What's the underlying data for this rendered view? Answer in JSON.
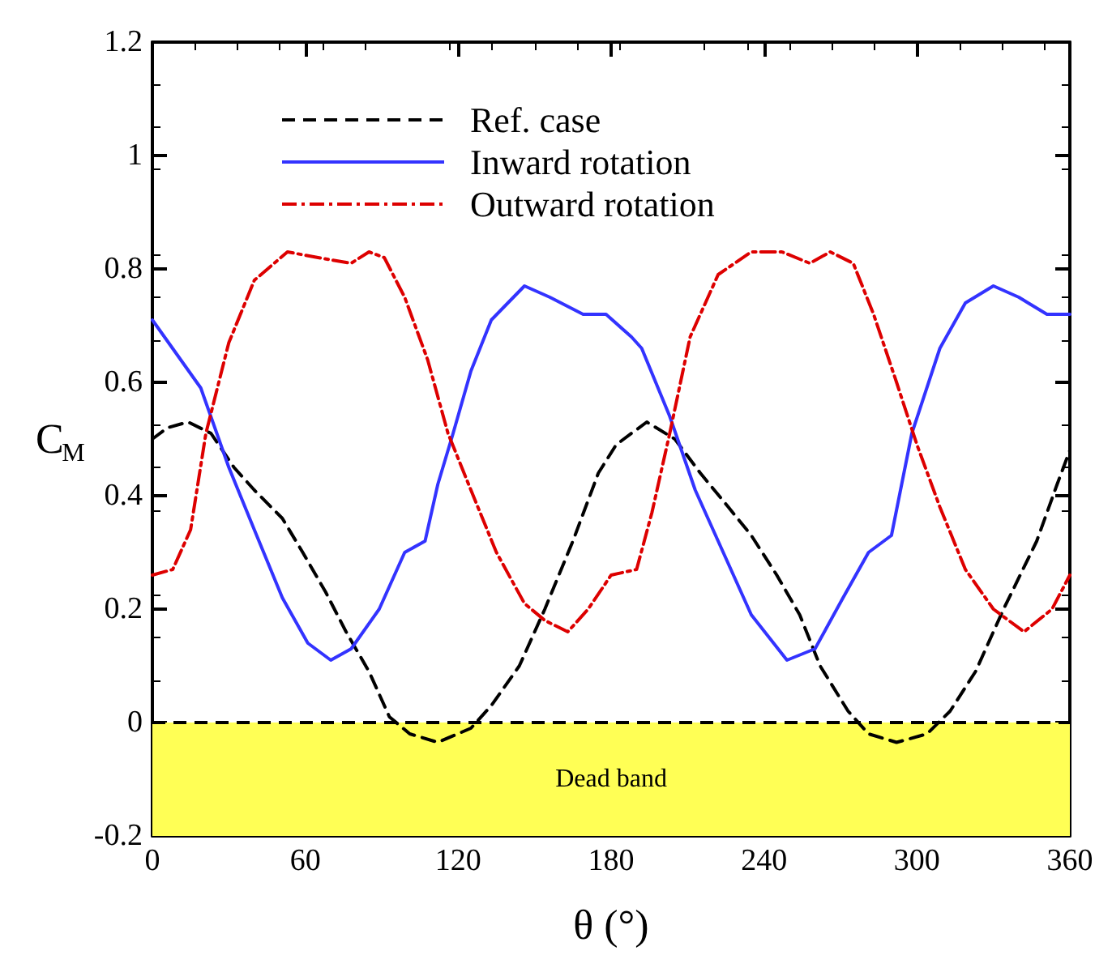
{
  "chart_data": {
    "type": "line",
    "xlabel": "θ (°)",
    "ylabel": "C$_{M}$",
    "xlim": [
      0,
      360
    ],
    "xticks": [
      0,
      60,
      120,
      180,
      240,
      300,
      360
    ],
    "ylim": [
      -0.2,
      1.2
    ],
    "yticks": [
      -0.2,
      0,
      0.2,
      0.4,
      0.6,
      0.8,
      1,
      1.2
    ],
    "grid": false,
    "legend": "top left",
    "marker": "none",
    "series": [
      {
        "name": "Ref. case",
        "color": "#000000",
        "line_style": "dashed",
        "x": [
          0,
          6,
          14,
          23,
          32,
          40,
          51,
          59,
          68,
          76,
          85,
          93,
          101,
          112,
          125,
          133,
          144,
          154,
          165,
          175,
          182,
          194,
          205,
          215,
          226,
          235,
          245,
          254,
          262,
          273,
          281,
          292,
          304,
          313,
          323,
          334,
          347,
          355,
          360
        ],
        "values": [
          0.5,
          0.52,
          0.53,
          0.51,
          0.45,
          0.41,
          0.36,
          0.3,
          0.23,
          0.16,
          0.09,
          0.01,
          -0.02,
          -0.035,
          -0.01,
          0.03,
          0.1,
          0.2,
          0.32,
          0.44,
          0.49,
          0.53,
          0.5,
          0.44,
          0.38,
          0.33,
          0.26,
          0.19,
          0.1,
          0.02,
          -0.02,
          -0.035,
          -0.02,
          0.02,
          0.09,
          0.2,
          0.32,
          0.42,
          0.48
        ]
      },
      {
        "name": "Inward rotation",
        "color": "#3333ff",
        "line_style": "solid",
        "x": [
          0,
          19,
          30,
          40,
          51,
          61,
          70,
          78,
          89,
          99,
          107,
          112,
          118,
          125,
          133,
          146,
          156,
          169,
          178,
          188,
          192,
          203,
          213,
          224,
          235,
          249,
          260,
          271,
          281,
          290,
          298,
          309,
          319,
          330,
          340,
          351,
          360
        ],
        "values": [
          0.71,
          0.59,
          0.45,
          0.34,
          0.22,
          0.14,
          0.11,
          0.13,
          0.2,
          0.3,
          0.32,
          0.42,
          0.51,
          0.62,
          0.71,
          0.77,
          0.75,
          0.72,
          0.72,
          0.68,
          0.66,
          0.54,
          0.41,
          0.3,
          0.19,
          0.11,
          0.13,
          0.22,
          0.3,
          0.33,
          0.51,
          0.66,
          0.74,
          0.77,
          0.75,
          0.72,
          0.72
        ]
      },
      {
        "name": "Outward rotation",
        "color": "#dd0000",
        "line_style": "dashdot",
        "x": [
          0,
          8,
          15,
          21,
          30,
          40,
          53,
          65,
          78,
          85,
          91,
          99,
          108,
          116,
          125,
          135,
          146,
          154,
          163,
          171,
          180,
          190,
          196,
          203,
          211,
          222,
          235,
          247,
          258,
          266,
          275,
          283,
          292,
          300,
          309,
          319,
          330,
          342,
          353,
          360
        ],
        "values": [
          0.26,
          0.27,
          0.34,
          0.51,
          0.67,
          0.78,
          0.83,
          0.82,
          0.81,
          0.83,
          0.82,
          0.75,
          0.64,
          0.51,
          0.41,
          0.3,
          0.21,
          0.18,
          0.16,
          0.2,
          0.26,
          0.27,
          0.37,
          0.51,
          0.68,
          0.79,
          0.83,
          0.83,
          0.81,
          0.83,
          0.81,
          0.72,
          0.6,
          0.49,
          0.38,
          0.27,
          0.2,
          0.16,
          0.2,
          0.26
        ]
      }
    ],
    "ref_lines": [
      {
        "axis": "y",
        "value": 0,
        "label": null,
        "color": "#000000",
        "line_style": "dashed"
      }
    ],
    "bands": [
      {
        "axis": "y",
        "from": -0.2,
        "to": 0,
        "label": "Dead band",
        "color": "#ffff55"
      }
    ]
  }
}
